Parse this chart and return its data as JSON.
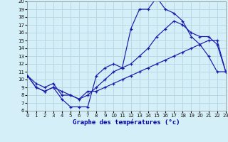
{
  "title": "Graphe des températures (°c)",
  "bg_color": "#d4eff7",
  "grid_color": "#b8d8e4",
  "line_color": "#1a1aaa",
  "xlim": [
    0,
    23
  ],
  "ylim": [
    6,
    20
  ],
  "xticks": [
    0,
    1,
    2,
    3,
    4,
    5,
    6,
    7,
    8,
    9,
    10,
    11,
    12,
    13,
    14,
    15,
    16,
    17,
    18,
    19,
    20,
    21,
    22,
    23
  ],
  "yticks": [
    6,
    7,
    8,
    9,
    10,
    11,
    12,
    13,
    14,
    15,
    16,
    17,
    18,
    19,
    20
  ],
  "curve1_x": [
    0,
    1,
    2,
    3,
    4,
    5,
    6,
    7,
    8,
    9,
    10,
    11,
    12,
    13,
    14,
    15,
    16,
    17,
    18,
    19,
    20,
    21,
    22,
    23
  ],
  "curve1_y": [
    10.5,
    9.0,
    8.5,
    9.0,
    7.5,
    6.5,
    6.5,
    6.5,
    10.5,
    11.5,
    12.0,
    11.5,
    16.5,
    19.0,
    19.0,
    20.5,
    19.0,
    18.5,
    17.5,
    15.5,
    14.5,
    13.0,
    11.0,
    11.0
  ],
  "curve2_x": [
    0,
    1,
    2,
    3,
    4,
    5,
    6,
    7,
    8,
    9,
    10,
    11,
    12,
    13,
    14,
    15,
    16,
    17,
    18,
    19,
    20,
    21,
    22,
    23
  ],
  "curve2_y": [
    10.5,
    9.5,
    9.0,
    9.5,
    8.0,
    8.0,
    7.5,
    8.0,
    9.0,
    10.0,
    11.0,
    11.5,
    12.0,
    13.0,
    14.0,
    15.5,
    16.5,
    17.5,
    17.0,
    16.0,
    15.5,
    15.5,
    14.5,
    11.0
  ],
  "curve3_x": [
    0,
    1,
    2,
    3,
    4,
    5,
    6,
    7,
    8,
    9,
    10,
    11,
    12,
    13,
    14,
    15,
    16,
    17,
    18,
    19,
    20,
    21,
    22,
    23
  ],
  "curve3_y": [
    10.5,
    9.0,
    8.5,
    9.0,
    8.5,
    8.0,
    7.5,
    8.5,
    8.5,
    9.0,
    9.5,
    10.0,
    10.5,
    11.0,
    11.5,
    12.0,
    12.5,
    13.0,
    13.5,
    14.0,
    14.5,
    15.0,
    15.0,
    11.0
  ]
}
